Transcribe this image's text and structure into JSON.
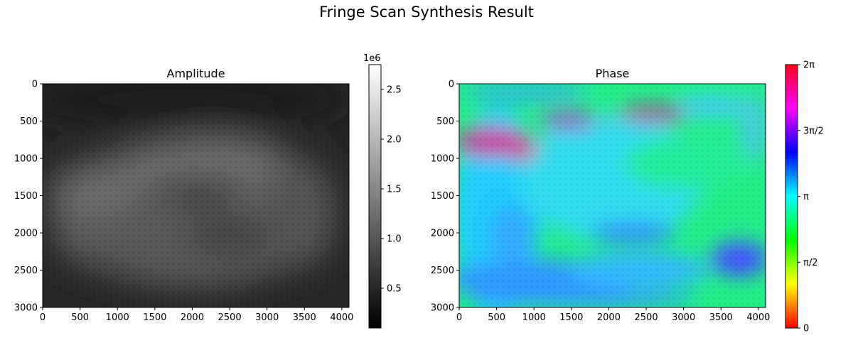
{
  "figure": {
    "title": "Fringe Scan Synthesis Result"
  },
  "chart_data": [
    {
      "type": "heatmap",
      "title": "Amplitude",
      "colormap": "gray",
      "xlim": [
        0,
        4096
      ],
      "ylim": [
        3000,
        0
      ],
      "x_ticks": [
        0,
        500,
        1000,
        1500,
        2000,
        2500,
        3000,
        3500,
        4000
      ],
      "x_tick_labels": [
        "0",
        "500",
        "1000",
        "1500",
        "2000",
        "2500",
        "3000",
        "3500",
        "4000"
      ],
      "y_ticks": [
        0,
        500,
        1000,
        1500,
        2000,
        2500,
        3000
      ],
      "y_tick_labels": [
        "0",
        "500",
        "1000",
        "1500",
        "2000",
        "2500",
        "3000"
      ],
      "colorbar": {
        "range": [
          0.1,
          2.75
        ],
        "multiplier": "1e6",
        "ticks": [
          0.5,
          1.0,
          1.5,
          2.0,
          2.5
        ],
        "tick_labels": [
          "0.5",
          "1.0",
          "1.5",
          "2.0",
          "2.5"
        ]
      },
      "description_of_field": "dark background with a brighter irregular blob roughly spanning x 300-3900, y 700-2800"
    },
    {
      "type": "heatmap",
      "title": "Phase",
      "colormap": "hsv",
      "xlim": [
        0,
        4096
      ],
      "ylim": [
        3000,
        0
      ],
      "x_ticks": [
        0,
        500,
        1000,
        1500,
        2000,
        2500,
        3000,
        3500,
        4000
      ],
      "x_tick_labels": [
        "0",
        "500",
        "1000",
        "1500",
        "2000",
        "2500",
        "3000",
        "3500",
        "4000"
      ],
      "y_ticks": [
        0,
        500,
        1000,
        1500,
        2000,
        2500,
        3000
      ],
      "y_tick_labels": [
        "0",
        "500",
        "1000",
        "1500",
        "2000",
        "2500",
        "3000"
      ],
      "colorbar": {
        "range": [
          0,
          6.2832
        ],
        "ticks": [
          0,
          1.5708,
          3.1416,
          4.7124,
          6.2832
        ],
        "tick_labels": [
          "0",
          "π/2",
          "π",
          "3π/2",
          "2π"
        ]
      }
    }
  ],
  "colors": {
    "amp_dark": "#252525",
    "amp_mid": "#6a6a6a",
    "phase_green": "#22ee88",
    "phase_cyan": "#22ccff",
    "phase_blue": "#3355ff",
    "phase_magenta": "#cc3399"
  }
}
